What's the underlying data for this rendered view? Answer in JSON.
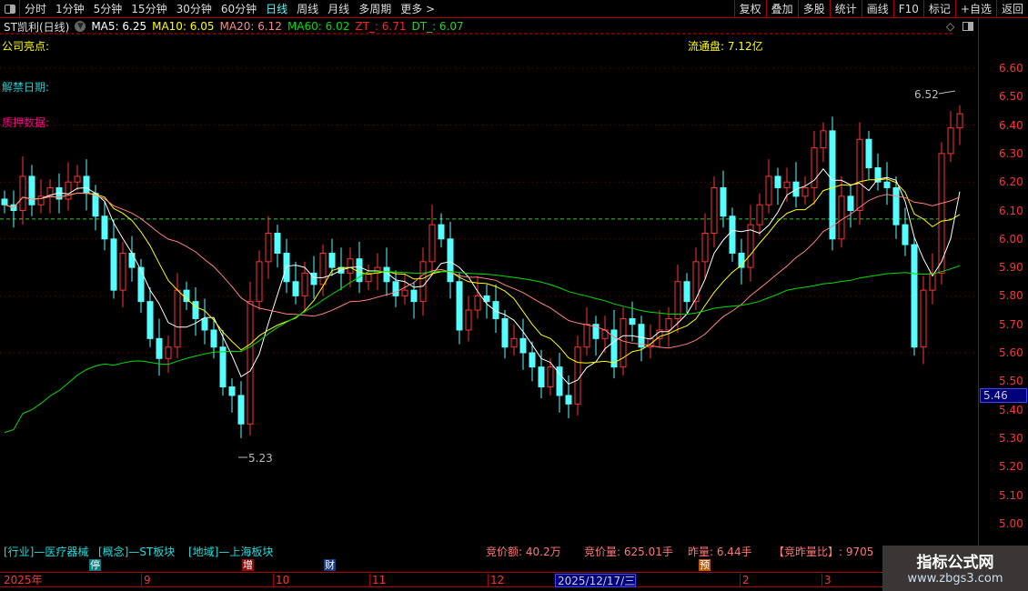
{
  "toolbar": {
    "periods": [
      "分时",
      "1分钟",
      "5分钟",
      "15分钟",
      "30分钟",
      "60分钟",
      "日线",
      "周线",
      "月线",
      "多周期",
      "更多 >"
    ],
    "active": "日线",
    "buttons": [
      "复权",
      "叠加",
      "多股",
      "统计",
      "画线",
      "F10",
      "标记",
      "+自选",
      "返回"
    ]
  },
  "info": {
    "title": "ST凯利(日线)",
    "ma5": "MA5: 6.25",
    "ma10": "MA10: 6.05",
    "ma20": "MA20: 6.12",
    "ma60": "MA60: 6.02",
    "zt": "ZT_: 6.71",
    "dt": "DT_: 6.07"
  },
  "labels": {
    "highlight": "公司亮点:",
    "float": "流通盘: 7.12亿",
    "unlock": "解禁日期:",
    "pledge": "质押数据:",
    "high_mark": "6.52",
    "low_mark": "5.23"
  },
  "axis": {
    "ticks": [
      "6.60",
      "6.50",
      "6.40",
      "6.30",
      "6.20",
      "6.10",
      "6.00",
      "5.90",
      "5.80",
      "5.70",
      "5.60",
      "5.50",
      "5.40",
      "5.30",
      "5.20",
      "5.10",
      "5.00"
    ],
    "cursor_price": "5.46"
  },
  "bottom": {
    "industry": "[行业]—医疗器械",
    "concept": "[概念]—ST板块",
    "region": "[地域]—上海板块",
    "auction_amount": "竞价额: 40.2万",
    "auction_volume": "竞价量: 625.01手",
    "yesterday_volume": "昨量: 6.44手",
    "ratio": "【竞昨量比】: 9705"
  },
  "badges": [
    {
      "text": "停",
      "color": "#0a7a7a"
    },
    {
      "text": "增",
      "color": "#8a1010"
    },
    {
      "text": "财",
      "color": "#1a3a7a"
    },
    {
      "text": "预",
      "color": "#b85a10"
    }
  ],
  "dates": [
    "2025年",
    "9",
    "10",
    "11",
    "12",
    "2025/12/17/三",
    "2",
    "3"
  ],
  "watermark": {
    "name": "指标公式网",
    "url": "www.zbgs3.com"
  },
  "colors": {
    "up": "#ff3333",
    "down": "#55ffff",
    "ma5": "#ffffff",
    "ma10": "#ffff00",
    "ma20": "#ff8080",
    "ma60": "#00dd00",
    "dt_line": "#33cc33"
  },
  "chart_data": {
    "type": "candlestick",
    "ylim": [
      5.0,
      6.6
    ],
    "dt_level": 6.07,
    "close": [
      6.12,
      6.1,
      6.22,
      6.12,
      6.15,
      6.18,
      6.14,
      6.2,
      6.22,
      6.16,
      6.08,
      6.0,
      5.82,
      5.95,
      5.9,
      5.78,
      5.65,
      5.58,
      5.62,
      5.82,
      5.78,
      5.72,
      5.68,
      5.62,
      5.48,
      5.45,
      5.35,
      5.78,
      5.92,
      6.02,
      5.95,
      5.85,
      5.8,
      5.88,
      5.84,
      5.95,
      5.9,
      5.88,
      5.93,
      5.85,
      5.88,
      5.9,
      5.85,
      5.8,
      5.82,
      5.78,
      5.92,
      6.05,
      6.0,
      5.85,
      5.68,
      5.75,
      5.8,
      5.78,
      5.72,
      5.62,
      5.65,
      5.6,
      5.55,
      5.48,
      5.55,
      5.45,
      5.42,
      5.62,
      5.7,
      5.65,
      5.68,
      5.55,
      5.72,
      5.7,
      5.62,
      5.65,
      5.68,
      5.72,
      5.85,
      5.78,
      5.92,
      6.02,
      6.18,
      6.08,
      5.95,
      5.9,
      6.05,
      6.12,
      6.22,
      6.18,
      6.2,
      6.15,
      6.18,
      6.32,
      6.38,
      6.0,
      6.15,
      6.1,
      6.35,
      6.25,
      6.2,
      6.18,
      6.05,
      5.98,
      5.62,
      5.82,
      5.88,
      6.3,
      6.39,
      6.44
    ]
  }
}
